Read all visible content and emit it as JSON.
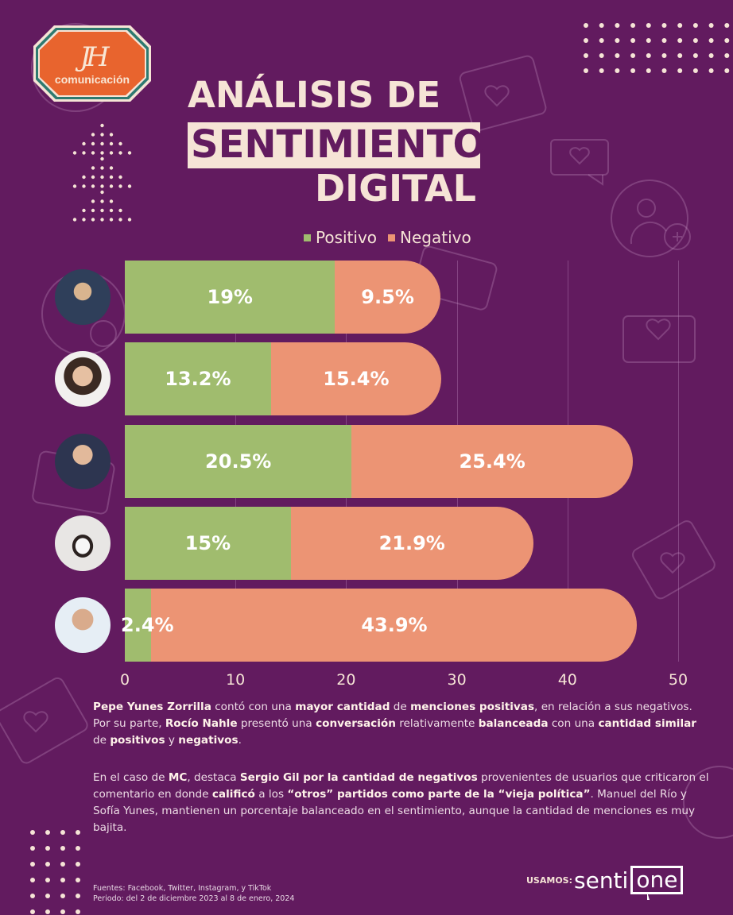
{
  "brand": {
    "logo_monogram": "JH",
    "logo_text": "comunicación",
    "colors": {
      "background": "#621B5F",
      "cream": "#F6E4D6",
      "logo_orange": "#E8642E",
      "logo_teal": "#2E7A70"
    }
  },
  "title": {
    "line1": "ANÁLISIS DE",
    "line2": "SENTIMIENTO",
    "line3": "DIGITAL"
  },
  "chart_data": {
    "type": "bar",
    "orientation": "horizontal",
    "stacked": true,
    "title": "ANÁLISIS DE SENTIMIENTO DIGITAL",
    "categories": [
      "Pepe Yunes Zorrilla",
      "Rocío Nahle",
      "Sergio Gil",
      "Sofía Yunes",
      "Manuel del Río"
    ],
    "series": [
      {
        "name": "Positivo",
        "color": "#A0BC6E",
        "values": [
          19,
          13.2,
          20.5,
          15,
          2.4
        ],
        "labels": [
          "19%",
          "13.2%",
          "20.5%",
          "15%",
          "2.4%"
        ]
      },
      {
        "name": "Negativo",
        "color": "#EC9474",
        "values": [
          9.5,
          15.4,
          25.4,
          21.9,
          43.9
        ],
        "labels": [
          "9.5%",
          "15.4%",
          "25.4%",
          "21.9%",
          "43.9%"
        ]
      }
    ],
    "xlim": [
      0,
      50
    ],
    "xticks": [
      "0",
      "10",
      "20",
      "30",
      "40",
      "50"
    ],
    "xlabel": "",
    "ylabel": "",
    "grid": true,
    "legend": {
      "placement": "top-center",
      "entries": [
        "Positivo",
        "Negativo"
      ]
    }
  },
  "summary": {
    "paragraph1": [
      {
        "t": "Pepe Yunes Zorrilla",
        "b": true
      },
      {
        "t": " contó con una ",
        "b": false
      },
      {
        "t": "mayor cantidad",
        "b": true
      },
      {
        "t": " de ",
        "b": false
      },
      {
        "t": "menciones positivas",
        "b": true
      },
      {
        "t": ", en relación a sus negativos. Por su parte, ",
        "b": false
      },
      {
        "t": "Rocío Nahle",
        "b": true
      },
      {
        "t": " presentó una ",
        "b": false
      },
      {
        "t": "conversación",
        "b": true
      },
      {
        "t": " relativamente ",
        "b": false
      },
      {
        "t": "balanceada",
        "b": true
      },
      {
        "t": " con una ",
        "b": false
      },
      {
        "t": "cantidad similar",
        "b": true
      },
      {
        "t": " de ",
        "b": false
      },
      {
        "t": "positivos",
        "b": true
      },
      {
        "t": " y ",
        "b": false
      },
      {
        "t": "negativos",
        "b": true
      },
      {
        "t": ".",
        "b": false
      }
    ],
    "paragraph2": [
      {
        "t": "En el caso de ",
        "b": false
      },
      {
        "t": "MC",
        "b": true
      },
      {
        "t": ", destaca ",
        "b": false
      },
      {
        "t": "Sergio Gil por la cantidad de negativos",
        "b": true
      },
      {
        "t": " provenientes de usuarios que criticaron el comentario en donde ",
        "b": false
      },
      {
        "t": "calificó",
        "b": true
      },
      {
        "t": " a los ",
        "b": false
      },
      {
        "t": "“otros” partidos como parte de la “vieja política”",
        "b": true
      },
      {
        "t": ". Manuel del Río y Sofía Yunes, mantienen un porcentaje balanceado en el sentimiento, aunque la cantidad de menciones es muy bajita.",
        "b": false
      }
    ]
  },
  "footer": {
    "sources": "Fuentes:  Facebook, Twitter, Instagram, y TikTok",
    "period": "Periodo: del 2 de diciembre 2023 al 8 de enero, 2024",
    "usamos_label": "USAMOS:",
    "tool_name_part1": "senti",
    "tool_name_part2": "one"
  }
}
